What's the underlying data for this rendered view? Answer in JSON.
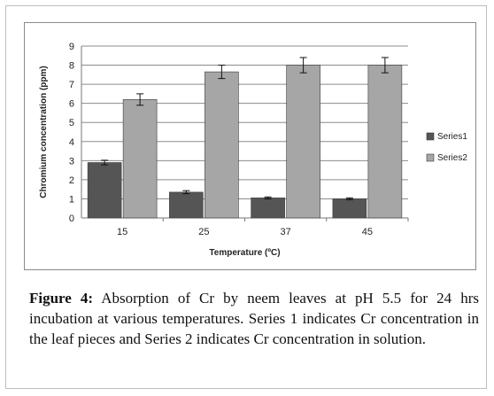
{
  "chart_data": {
    "type": "bar",
    "categories": [
      "15",
      "25",
      "37",
      "45"
    ],
    "series": [
      {
        "name": "Series1",
        "values": [
          2.9,
          1.35,
          1.05,
          1.0
        ],
        "errors": [
          0.12,
          0.08,
          0.05,
          0.05
        ],
        "color": "#555555"
      },
      {
        "name": "Series2",
        "values": [
          6.2,
          7.65,
          8.0,
          8.0
        ],
        "errors": [
          0.3,
          0.35,
          0.4,
          0.4
        ],
        "color": "#a6a6a6"
      }
    ],
    "xlabel": "Temperature (ºC)",
    "ylabel": "Chromium concentration (ppm)",
    "ylim": [
      0,
      9
    ],
    "yticks": [
      "0",
      "1",
      "2",
      "3",
      "4",
      "5",
      "6",
      "7",
      "8",
      "9"
    ],
    "grid": true,
    "legend_position": "right"
  },
  "caption": {
    "label": "Figure 4:",
    "text": " Absorption of Cr by neem leaves at pH 5.5 for 24 hrs incubation at various temperatures. Series 1 indicates Cr concentration in the leaf pieces and Series 2 indicates Cr concentration in solution."
  }
}
